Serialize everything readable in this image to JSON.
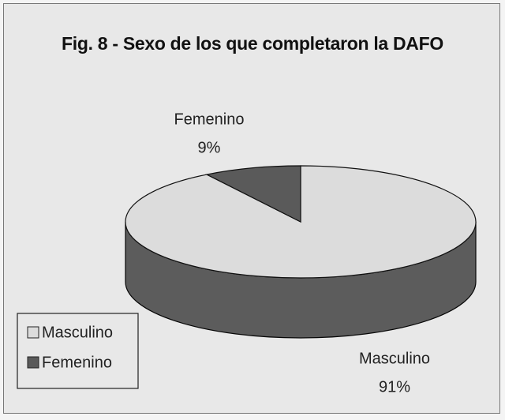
{
  "chart_data": {
    "type": "pie",
    "title": "Fig. 8 - Sexo de los que completaron la DAFO",
    "categories": [
      "Masculino",
      "Femenino"
    ],
    "values": [
      91,
      9
    ],
    "value_labels": [
      "91%",
      "9%"
    ],
    "colors": [
      "#dcdcdc",
      "#5a5a5a"
    ],
    "legend": "bottom-left"
  }
}
